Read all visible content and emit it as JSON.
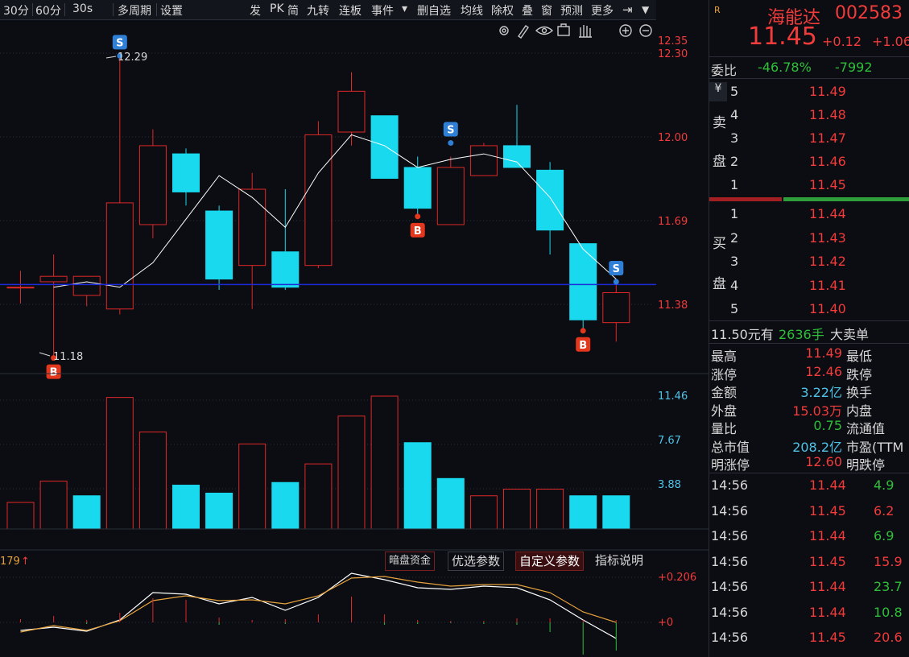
{
  "toolbar": {
    "items": [
      "30分",
      "60分",
      "30s",
      "多周期",
      "设置",
      "发",
      "PK",
      "简",
      "九转",
      "连板",
      "事件",
      "▾",
      "删自选",
      "均线",
      "除权",
      "叠",
      "窗",
      "预测",
      "更多"
    ]
  },
  "chart": {
    "price_labels": [
      "12.35",
      "12.30",
      "12.00",
      "11.69",
      "11.38"
    ],
    "volume_labels": [
      "11.46",
      "7.67",
      "3.88"
    ],
    "indicator_labels": [
      "+0.206",
      "+0"
    ],
    "indicator_value": "179",
    "high_annotation": "12.29",
    "low_annotation": "11.18",
    "markers": [
      "S",
      "B",
      "S",
      "B",
      "S",
      "B"
    ],
    "indicator_buttons": [
      "暗盘资金",
      "优选参数",
      "自定义参数",
      "指标说明"
    ]
  },
  "chart_data": {
    "type": "candlestick",
    "candles": [
      {
        "o": 11.44,
        "h": 11.5,
        "l": 11.38,
        "c": 11.44
      },
      {
        "o": 11.46,
        "h": 11.56,
        "l": 11.18,
        "c": 11.48
      },
      {
        "o": 11.41,
        "h": 11.48,
        "l": 11.37,
        "c": 11.48
      },
      {
        "o": 11.36,
        "h": 12.29,
        "l": 11.34,
        "c": 11.75
      },
      {
        "o": 11.67,
        "h": 12.02,
        "l": 11.62,
        "c": 11.96
      },
      {
        "o": 11.93,
        "h": 11.95,
        "l": 11.74,
        "c": 11.79
      },
      {
        "o": 11.72,
        "h": 11.74,
        "l": 11.43,
        "c": 11.47
      },
      {
        "o": 11.52,
        "h": 11.86,
        "l": 11.36,
        "c": 11.8
      },
      {
        "o": 11.57,
        "h": 11.8,
        "l": 11.43,
        "c": 11.44
      },
      {
        "o": 11.52,
        "h": 12.05,
        "l": 11.51,
        "c": 12.0
      },
      {
        "o": 12.01,
        "h": 12.23,
        "l": 11.96,
        "c": 12.16
      },
      {
        "o": 12.07,
        "h": 12.07,
        "l": 11.84,
        "c": 11.84
      },
      {
        "o": 11.88,
        "h": 11.92,
        "l": 11.7,
        "c": 11.73
      },
      {
        "o": 11.67,
        "h": 11.92,
        "l": 11.67,
        "c": 11.88
      },
      {
        "o": 11.85,
        "h": 11.97,
        "l": 11.85,
        "c": 11.96
      },
      {
        "o": 11.96,
        "h": 12.11,
        "l": 11.88,
        "c": 11.88
      },
      {
        "o": 11.87,
        "h": 11.9,
        "l": 11.56,
        "c": 11.65
      },
      {
        "o": 11.6,
        "h": 11.6,
        "l": 11.28,
        "c": 11.32
      },
      {
        "o": 11.31,
        "h": 11.46,
        "l": 11.24,
        "c": 11.42
      }
    ],
    "ma": [
      11.44,
      11.46,
      11.44,
      11.53,
      11.69,
      11.85,
      11.77,
      11.66,
      11.86,
      12.0,
      11.96,
      11.88,
      11.91,
      11.93,
      11.9,
      11.77,
      11.58,
      11.47
    ],
    "reference_line": 11.45,
    "volumes": [
      2.0,
      3.6,
      2.5,
      9.9,
      7.3,
      3.3,
      2.7,
      6.4,
      3.5,
      4.9,
      8.5,
      10.0,
      6.5,
      3.8,
      2.5,
      3.0,
      3.0,
      2.5,
      2.5
    ],
    "volume_up": [
      true,
      true,
      false,
      true,
      true,
      false,
      false,
      true,
      false,
      true,
      true,
      true,
      false,
      false,
      true,
      true,
      true,
      false,
      false
    ],
    "price_ylim": [
      11.1,
      12.4
    ],
    "volume_ylim": [
      0,
      11.46
    ]
  },
  "panel": {
    "logo": "R",
    "stock_name": "海能达",
    "stock_code": "002583",
    "price": "11.45",
    "change": "+0.12",
    "change_pct": "+1.06",
    "weibi_label": "委比",
    "weibi_pct": "-46.78%",
    "weibi_val": "-7992",
    "sell_label": [
      "卖",
      "盘"
    ],
    "buy_label": [
      "买",
      "盘"
    ],
    "yen": "¥",
    "asks": [
      {
        "level": "5",
        "price": "11.49"
      },
      {
        "level": "4",
        "price": "11.48"
      },
      {
        "level": "3",
        "price": "11.47"
      },
      {
        "level": "2",
        "price": "11.46"
      },
      {
        "level": "1",
        "price": "11.45"
      }
    ],
    "bids": [
      {
        "level": "1",
        "price": "11.44"
      },
      {
        "level": "2",
        "price": "11.43"
      },
      {
        "level": "3",
        "price": "11.42"
      },
      {
        "level": "4",
        "price": "11.41"
      },
      {
        "level": "5",
        "price": "11.40"
      }
    ],
    "big_order": {
      "prefix": "11.50元有",
      "qty": "2636手",
      "suffix": "大卖单"
    },
    "stats": [
      {
        "l": "最高",
        "v": "11.49",
        "c": "red",
        "r": "最低"
      },
      {
        "l": "涨停",
        "v": "12.46",
        "c": "red",
        "r": "跌停"
      },
      {
        "l": "金额",
        "v": "3.22亿",
        "c": "cyan",
        "r": "换手"
      },
      {
        "l": "外盘",
        "v": "15.03万",
        "c": "red",
        "r": "内盘"
      },
      {
        "l": "量比",
        "v": "0.75",
        "c": "green",
        "r": "流通值"
      },
      {
        "l": "总市值",
        "v": "208.2亿",
        "c": "cyan",
        "r": "市盈(TTM"
      },
      {
        "l": "明涨停",
        "v": "12.60",
        "c": "red",
        "r": "明跌停"
      }
    ],
    "ticks": [
      {
        "t": "14:56",
        "p": "11.44",
        "v": "4.9",
        "vc": "green"
      },
      {
        "t": "14:56",
        "p": "11.45",
        "v": "6.2",
        "vc": "red"
      },
      {
        "t": "14:56",
        "p": "11.44",
        "v": "6.9",
        "vc": "green"
      },
      {
        "t": "14:56",
        "p": "11.45",
        "v": "15.9",
        "vc": "red"
      },
      {
        "t": "14:56",
        "p": "11.44",
        "v": "23.7",
        "vc": "green"
      },
      {
        "t": "14:56",
        "p": "11.44",
        "v": "10.8",
        "vc": "green"
      },
      {
        "t": "14:56",
        "p": "11.45",
        "v": "20.6",
        "vc": "red"
      }
    ]
  }
}
